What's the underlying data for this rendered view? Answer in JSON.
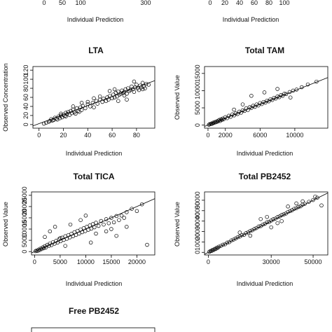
{
  "chart_data": [
    {
      "type": "scatter",
      "title": "",
      "xlabel": "Individual Prediction",
      "ylabel": "",
      "xticks": [
        "0",
        "50",
        "100",
        "",
        "300"
      ],
      "yticks": [],
      "xlim": [
        0,
        330
      ],
      "ylim": [
        0,
        1
      ],
      "points": [],
      "line": null,
      "partial": true
    },
    {
      "type": "scatter",
      "title": "",
      "xlabel": "Individual Prediction",
      "ylabel": "",
      "xticks": [
        "0",
        "20",
        "40",
        "60",
        "80",
        "100"
      ],
      "yticks": [],
      "xlim": [
        0,
        105
      ],
      "ylim": [
        0,
        1
      ],
      "points": [],
      "line": null,
      "partial": true
    },
    {
      "type": "scatter",
      "title": "LTA",
      "xlabel": "Individual Prediction",
      "ylabel": "Observed Concentration",
      "xticks": [
        "0",
        "20",
        "40",
        "60",
        "80"
      ],
      "yticks": [
        "0",
        "20",
        "40",
        "60",
        "80",
        "100",
        "120"
      ],
      "xlim": [
        -5,
        95
      ],
      "ylim": [
        -8,
        128
      ],
      "points": [
        [
          4,
          2
        ],
        [
          6,
          4
        ],
        [
          8,
          6
        ],
        [
          9,
          8
        ],
        [
          10,
          12
        ],
        [
          11,
          9
        ],
        [
          12,
          10
        ],
        [
          13,
          15
        ],
        [
          14,
          13
        ],
        [
          15,
          11
        ],
        [
          16,
          18
        ],
        [
          17,
          14
        ],
        [
          18,
          20
        ],
        [
          18,
          24
        ],
        [
          19,
          16
        ],
        [
          20,
          22
        ],
        [
          21,
          19
        ],
        [
          22,
          26
        ],
        [
          22,
          18
        ],
        [
          23,
          23
        ],
        [
          24,
          28
        ],
        [
          25,
          21
        ],
        [
          26,
          30
        ],
        [
          27,
          25
        ],
        [
          28,
          33
        ],
        [
          29,
          27
        ],
        [
          30,
          24
        ],
        [
          31,
          36
        ],
        [
          32,
          30
        ],
        [
          33,
          28
        ],
        [
          34,
          38
        ],
        [
          35,
          32
        ],
        [
          36,
          41
        ],
        [
          38,
          36
        ],
        [
          40,
          45
        ],
        [
          42,
          40
        ],
        [
          44,
          48
        ],
        [
          45,
          38
        ],
        [
          47,
          52
        ],
        [
          48,
          46
        ],
        [
          50,
          55
        ],
        [
          52,
          50
        ],
        [
          53,
          57
        ],
        [
          55,
          52
        ],
        [
          56,
          60
        ],
        [
          57,
          55
        ],
        [
          58,
          63
        ],
        [
          60,
          58
        ],
        [
          61,
          66
        ],
        [
          62,
          60
        ],
        [
          63,
          70
        ],
        [
          64,
          62
        ],
        [
          65,
          73
        ],
        [
          66,
          66
        ],
        [
          67,
          68
        ],
        [
          68,
          75
        ],
        [
          69,
          70
        ],
        [
          70,
          72
        ],
        [
          71,
          78
        ],
        [
          72,
          68
        ],
        [
          73,
          80
        ],
        [
          74,
          74
        ],
        [
          75,
          76
        ],
        [
          76,
          84
        ],
        [
          77,
          78
        ],
        [
          78,
          72
        ],
        [
          79,
          82
        ],
        [
          80,
          88
        ],
        [
          81,
          80
        ],
        [
          82,
          76
        ],
        [
          83,
          86
        ],
        [
          84,
          82
        ],
        [
          85,
          92
        ],
        [
          86,
          84
        ],
        [
          87,
          80
        ],
        [
          88,
          90
        ],
        [
          72,
          55
        ],
        [
          78,
          95
        ],
        [
          65,
          52
        ],
        [
          58,
          74
        ],
        [
          45,
          58
        ],
        [
          35,
          48
        ],
        [
          28,
          40
        ],
        [
          85,
          78
        ],
        [
          90,
          88
        ],
        [
          70,
          64
        ],
        [
          62,
          78
        ],
        [
          50,
          62
        ],
        [
          40,
          50
        ]
      ],
      "line": {
        "slope": 1.0,
        "intercept": 2
      }
    },
    {
      "type": "scatter",
      "title": "Total TAM",
      "xlabel": "Individual Prediction",
      "ylabel": "Observed Value",
      "xticks": [
        "0",
        "2000",
        "6000",
        "10000"
      ],
      "yticks": [
        "0",
        "5000",
        "10000",
        "15000"
      ],
      "xlim": [
        -400,
        13800
      ],
      "ylim": [
        -900,
        17000
      ],
      "points": [
        [
          100,
          100
        ],
        [
          200,
          250
        ],
        [
          300,
          300
        ],
        [
          400,
          450
        ],
        [
          500,
          400
        ],
        [
          600,
          700
        ],
        [
          700,
          650
        ],
        [
          800,
          900
        ],
        [
          900,
          800
        ],
        [
          1000,
          1100
        ],
        [
          1100,
          1000
        ],
        [
          1200,
          1300
        ],
        [
          1300,
          1500
        ],
        [
          1400,
          1200
        ],
        [
          1500,
          1700
        ],
        [
          1600,
          1500
        ],
        [
          1700,
          1900
        ],
        [
          1800,
          1700
        ],
        [
          2000,
          2300
        ],
        [
          2200,
          2000
        ],
        [
          2400,
          2700
        ],
        [
          2600,
          2400
        ],
        [
          2800,
          3100
        ],
        [
          3000,
          2800
        ],
        [
          3200,
          3400
        ],
        [
          3400,
          3200
        ],
        [
          3600,
          3900
        ],
        [
          3800,
          3600
        ],
        [
          4000,
          4300
        ],
        [
          4200,
          4100
        ],
        [
          4400,
          4900
        ],
        [
          4600,
          4400
        ],
        [
          4800,
          5200
        ],
        [
          5000,
          5000
        ],
        [
          5200,
          5600
        ],
        [
          5400,
          5300
        ],
        [
          5600,
          6000
        ],
        [
          5800,
          5700
        ],
        [
          6000,
          6400
        ],
        [
          6200,
          6100
        ],
        [
          6400,
          6700
        ],
        [
          6600,
          6500
        ],
        [
          6800,
          7100
        ],
        [
          7000,
          6900
        ],
        [
          7200,
          7500
        ],
        [
          7400,
          7300
        ],
        [
          7600,
          7900
        ],
        [
          7800,
          7700
        ],
        [
          8000,
          8300
        ],
        [
          8200,
          8100
        ],
        [
          8400,
          8700
        ],
        [
          8600,
          8500
        ],
        [
          8800,
          9100
        ],
        [
          9000,
          9000
        ],
        [
          9400,
          9600
        ],
        [
          9800,
          10000
        ],
        [
          10200,
          10300
        ],
        [
          10800,
          11000
        ],
        [
          11500,
          11800
        ],
        [
          12500,
          12600
        ],
        [
          5000,
          8500
        ],
        [
          6500,
          9500
        ],
        [
          8000,
          10500
        ],
        [
          4000,
          6000
        ],
        [
          3000,
          4500
        ],
        [
          9500,
          8000
        ]
      ],
      "line": {
        "slope": 1.0,
        "intercept": 0
      }
    },
    {
      "type": "scatter",
      "title": "Total TICA",
      "xlabel": "Individual Prediction",
      "ylabel": "Observed Value",
      "xticks": [
        "0",
        "5000",
        "10000",
        "15000",
        "20000"
      ],
      "yticks": [
        "0",
        "5000",
        "10000",
        "15000",
        "20000",
        "25000"
      ],
      "xlim": [
        -600,
        23500
      ],
      "ylim": [
        -1500,
        26500
      ],
      "points": [
        [
          200,
          200
        ],
        [
          400,
          500
        ],
        [
          600,
          300
        ],
        [
          800,
          900
        ],
        [
          1000,
          700
        ],
        [
          1200,
          1400
        ],
        [
          1400,
          1100
        ],
        [
          1600,
          1900
        ],
        [
          1800,
          1500
        ],
        [
          2000,
          2400
        ],
        [
          2200,
          1800
        ],
        [
          2500,
          3000
        ],
        [
          2800,
          2500
        ],
        [
          3000,
          3600
        ],
        [
          3300,
          2900
        ],
        [
          3600,
          4200
        ],
        [
          3900,
          3500
        ],
        [
          4200,
          4800
        ],
        [
          4500,
          4000
        ],
        [
          4800,
          5500
        ],
        [
          5100,
          4600
        ],
        [
          5400,
          6200
        ],
        [
          5700,
          5200
        ],
        [
          6000,
          6800
        ],
        [
          6300,
          5700
        ],
        [
          6600,
          7300
        ],
        [
          6900,
          6300
        ],
        [
          7200,
          7900
        ],
        [
          7500,
          6800
        ],
        [
          7800,
          8600
        ],
        [
          8100,
          7400
        ],
        [
          8400,
          9200
        ],
        [
          8700,
          8000
        ],
        [
          9000,
          9800
        ],
        [
          9300,
          8600
        ],
        [
          9600,
          10400
        ],
        [
          9900,
          9100
        ],
        [
          10200,
          11000
        ],
        [
          10500,
          9700
        ],
        [
          10800,
          11600
        ],
        [
          11100,
          10200
        ],
        [
          11400,
          12200
        ],
        [
          11700,
          10800
        ],
        [
          12000,
          12800
        ],
        [
          12500,
          11400
        ],
        [
          13000,
          13600
        ],
        [
          13500,
          12000
        ],
        [
          14000,
          14400
        ],
        [
          14500,
          12600
        ],
        [
          15000,
          15000
        ],
        [
          15500,
          13000
        ],
        [
          16000,
          15800
        ],
        [
          16500,
          14000
        ],
        [
          17000,
          16000
        ],
        [
          17500,
          15000
        ],
        [
          18000,
          17500
        ],
        [
          19000,
          19000
        ],
        [
          20000,
          18000
        ],
        [
          21000,
          21000
        ],
        [
          22000,
          3000
        ],
        [
          3000,
          9000
        ],
        [
          4000,
          11000
        ],
        [
          5000,
          6000
        ],
        [
          7000,
          12000
        ],
        [
          9000,
          14000
        ],
        [
          10000,
          16000
        ],
        [
          12000,
          8000
        ],
        [
          14000,
          9000
        ],
        [
          15000,
          10000
        ],
        [
          16000,
          7000
        ],
        [
          18000,
          11000
        ],
        [
          11000,
          4000
        ],
        [
          6000,
          2500
        ],
        [
          2000,
          6500
        ]
      ],
      "line": {
        "slope": 1.0,
        "intercept": 0
      }
    },
    {
      "type": "scatter",
      "title": "Total PB2452",
      "xlabel": "Individual Prediction",
      "ylabel": "Observed Value",
      "xticks": [
        "0",
        "30000",
        "50000"
      ],
      "yticks": [
        "0",
        "10000",
        "20000",
        "30000",
        "40000",
        "50000"
      ],
      "xlim": [
        -1800,
        57000
      ],
      "ylim": [
        -2500,
        58000
      ],
      "points": [
        [
          500,
          500
        ],
        [
          1000,
          1200
        ],
        [
          1500,
          1300
        ],
        [
          2000,
          2400
        ],
        [
          2500,
          2200
        ],
        [
          3000,
          3300
        ],
        [
          3500,
          3200
        ],
        [
          4000,
          4500
        ],
        [
          4500,
          4300
        ],
        [
          5000,
          5400
        ],
        [
          6000,
          6200
        ],
        [
          7000,
          7300
        ],
        [
          8000,
          7800
        ],
        [
          9000,
          9300
        ],
        [
          10000,
          9800
        ],
        [
          11000,
          11500
        ],
        [
          12000,
          12200
        ],
        [
          13000,
          13300
        ],
        [
          14000,
          14500
        ],
        [
          15000,
          15200
        ],
        [
          16000,
          16500
        ],
        [
          17000,
          16800
        ],
        [
          18000,
          18500
        ],
        [
          19000,
          19200
        ],
        [
          20000,
          20600
        ],
        [
          21000,
          21200
        ],
        [
          22000,
          22500
        ],
        [
          23000,
          23300
        ],
        [
          24000,
          24800
        ],
        [
          25000,
          25200
        ],
        [
          26000,
          26600
        ],
        [
          27000,
          27400
        ],
        [
          28000,
          28800
        ],
        [
          29000,
          29200
        ],
        [
          30000,
          30500
        ],
        [
          31000,
          31800
        ],
        [
          32000,
          32400
        ],
        [
          33000,
          33900
        ],
        [
          34000,
          34500
        ],
        [
          35000,
          35800
        ],
        [
          36000,
          36500
        ],
        [
          37000,
          37200
        ],
        [
          38000,
          38800
        ],
        [
          39000,
          39600
        ],
        [
          40000,
          40500
        ],
        [
          41000,
          41800
        ],
        [
          42000,
          42400
        ],
        [
          43000,
          43600
        ],
        [
          44000,
          44200
        ],
        [
          45000,
          45800
        ],
        [
          46000,
          46500
        ],
        [
          48000,
          48500
        ],
        [
          50000,
          50200
        ],
        [
          52000,
          52500
        ],
        [
          54000,
          45000
        ],
        [
          45000,
          49000
        ],
        [
          38000,
          44000
        ],
        [
          30000,
          24000
        ],
        [
          25000,
          32000
        ],
        [
          20000,
          16000
        ],
        [
          15000,
          19000
        ],
        [
          35000,
          30000
        ],
        [
          42000,
          47000
        ],
        [
          28000,
          34000
        ],
        [
          33000,
          28000
        ],
        [
          51000,
          53500
        ]
      ],
      "line": {
        "slope": 1.0,
        "intercept": 0
      }
    },
    {
      "type": "scatter",
      "title": "Free PB2452",
      "xlabel": "",
      "ylabel": "",
      "xticks": [],
      "yticks": [],
      "xlim": [
        0,
        1
      ],
      "ylim": [
        0,
        1
      ],
      "points": [],
      "line": null,
      "partial": true
    }
  ]
}
